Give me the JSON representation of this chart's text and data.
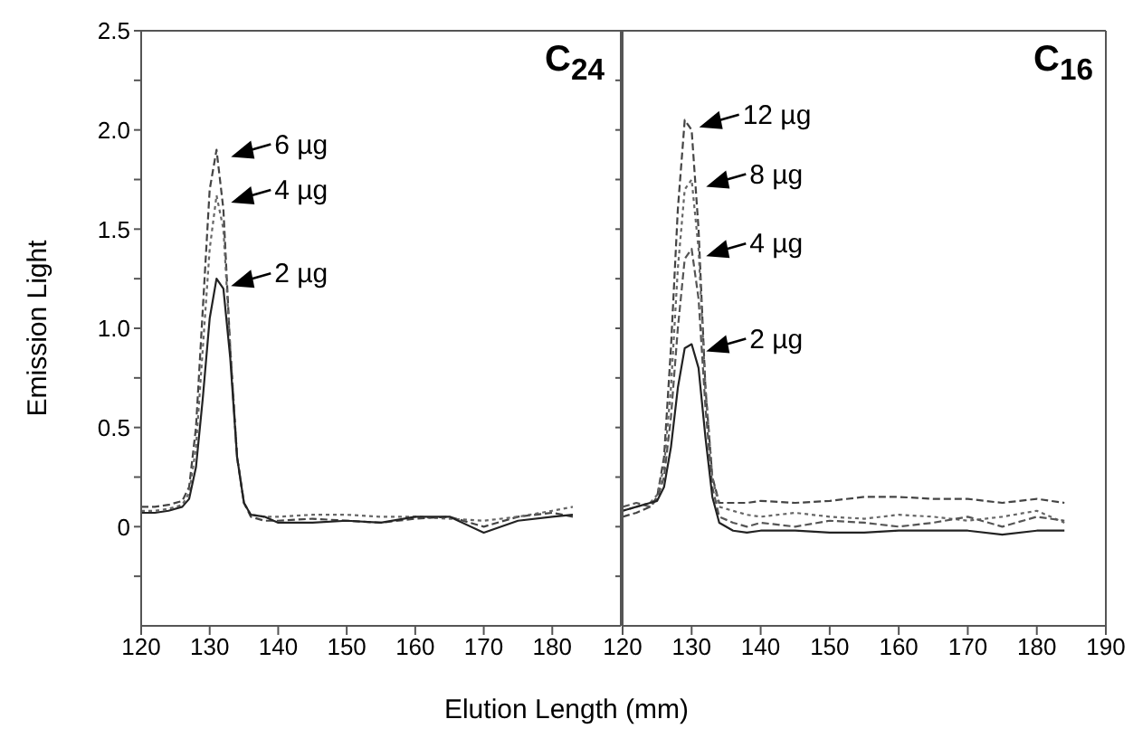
{
  "chart_data": [
    {
      "type": "line",
      "title": "C$_{24}$",
      "xlabel": "Elution Length (mm)",
      "ylabel": "Emission Light",
      "x": [
        120,
        122,
        124,
        126,
        127,
        128,
        129,
        130,
        131,
        132,
        133,
        134,
        135,
        136,
        138,
        140,
        145,
        150,
        155,
        160,
        165,
        170,
        175,
        180,
        183
      ],
      "xlim": [
        120,
        190
      ],
      "xticks": [
        120,
        130,
        140,
        150,
        160,
        170,
        180
      ],
      "ylim": [
        -0.5,
        2.5
      ],
      "yticks": [
        {
          "value": -0.25,
          "label": null
        },
        0,
        {
          "value": 0.25,
          "label": null
        },
        0.5,
        {
          "value": 0.75,
          "label": null
        },
        {
          "value": 1,
          "label": "1.0"
        },
        {
          "value": 1.25,
          "label": null
        },
        1.5,
        {
          "value": 1.75,
          "label": null
        },
        {
          "value": 2,
          "label": "2.0"
        },
        {
          "value": 2.25,
          "label": null
        },
        2.5
      ],
      "grid": false,
      "legend": false,
      "marker": "none",
      "series": [
        {
          "name": "6 µg",
          "color": "#444444",
          "line_style": "dashed",
          "values": [
            0.1,
            0.1,
            0.11,
            0.13,
            0.2,
            0.5,
            1.1,
            1.7,
            1.9,
            1.6,
            0.9,
            0.35,
            0.12,
            0.05,
            0.03,
            0.03,
            0.04,
            0.03,
            0.02,
            0.04,
            0.05,
            0,
            0.05,
            0.07,
            0.05
          ]
        },
        {
          "name": "4 µg",
          "color": "#666666",
          "line_style": "dotted",
          "values": [
            0.08,
            0.08,
            0.09,
            0.11,
            0.17,
            0.4,
            0.9,
            1.4,
            1.67,
            1.5,
            0.9,
            0.35,
            0.12,
            0.06,
            0.05,
            0.05,
            0.06,
            0.06,
            0.05,
            0.05,
            0.04,
            0.03,
            0.05,
            0.08,
            0.1
          ]
        },
        {
          "name": "2 µg",
          "color": "#222222",
          "line_style": "solid",
          "values": [
            0.07,
            0.07,
            0.08,
            0.1,
            0.14,
            0.3,
            0.65,
            1.05,
            1.25,
            1.2,
            0.85,
            0.35,
            0.12,
            0.06,
            0.05,
            0.02,
            0.02,
            0.03,
            0.02,
            0.05,
            0.05,
            -0.03,
            0.03,
            0.05,
            0.06
          ]
        }
      ]
    },
    {
      "type": "line",
      "title": "C$_{16}$",
      "x": [
        120,
        122,
        124,
        125,
        126,
        127,
        128,
        129,
        130,
        131,
        132,
        133,
        134,
        136,
        138,
        140,
        145,
        150,
        155,
        160,
        165,
        170,
        175,
        180,
        184
      ],
      "xlim": [
        120,
        190
      ],
      "xticks": [
        120,
        130,
        140,
        150,
        160,
        170,
        180,
        190
      ],
      "ylim": [
        -0.5,
        2.5
      ],
      "yticks": [
        -0.25,
        0,
        0.25,
        0.5,
        0.75,
        1,
        1.25,
        1.5,
        1.75,
        2,
        2.25,
        2.5
      ],
      "tick_labels": "x",
      "grid": false,
      "legend": false,
      "marker": "none",
      "series": [
        {
          "name": "12 µg",
          "color": "#444444",
          "line_style": "dashed",
          "values": [
            0.05,
            0.07,
            0.1,
            0.15,
            0.35,
            0.9,
            1.6,
            2.05,
            2,
            1.5,
            0.7,
            0.25,
            0.12,
            0.12,
            0.12,
            0.13,
            0.12,
            0.13,
            0.15,
            0.15,
            0.14,
            0.14,
            0.12,
            0.14,
            0.12
          ]
        },
        {
          "name": "8 µg",
          "color": "#666666",
          "line_style": "dotted",
          "values": [
            0.08,
            0.1,
            0.12,
            0.16,
            0.3,
            0.7,
            1.3,
            1.7,
            1.75,
            1.4,
            0.7,
            0.25,
            0.1,
            0.08,
            0.06,
            0.05,
            0.07,
            0.05,
            0.04,
            0.06,
            0.05,
            0.03,
            0.05,
            0.08,
            0.02
          ]
        },
        {
          "name": "4 µg",
          "color": "#555555",
          "line_style": "dashed",
          "values": [
            0.1,
            0.12,
            0.1,
            0.14,
            0.25,
            0.55,
            1,
            1.35,
            1.4,
            1.15,
            0.6,
            0.2,
            0.05,
            0.02,
            0,
            0.02,
            0,
            0.03,
            0.02,
            0,
            0.02,
            0.05,
            0,
            0.05,
            0.03
          ]
        },
        {
          "name": "2 µg",
          "color": "#222222",
          "line_style": "solid",
          "values": [
            0.08,
            0.1,
            0.12,
            0.13,
            0.2,
            0.4,
            0.7,
            0.9,
            0.92,
            0.8,
            0.45,
            0.15,
            0.02,
            -0.02,
            -0.03,
            -0.02,
            -0.02,
            -0.03,
            -0.03,
            -0.02,
            -0.02,
            -0.02,
            -0.04,
            -0.02,
            -0.02
          ]
        }
      ]
    }
  ]
}
